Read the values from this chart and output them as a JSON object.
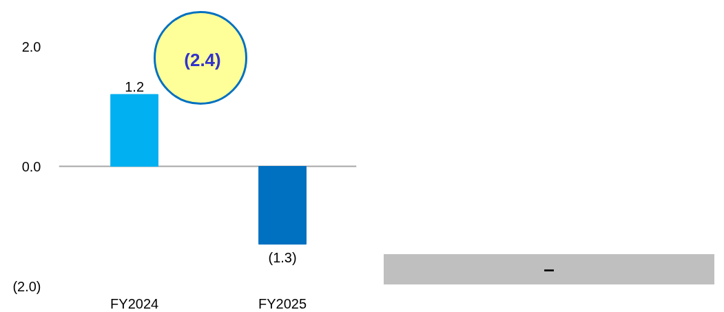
{
  "chart_data": {
    "type": "bar",
    "categories": [
      "FY2024",
      "FY2025"
    ],
    "values": [
      1.2,
      -1.3
    ],
    "colors": [
      "#00b0f0",
      "#0070c0"
    ],
    "value_labels": [
      "1.2",
      "(1.3)"
    ],
    "ylim": [
      -2.0,
      2.0
    ],
    "yticks": [
      {
        "value": -2.0,
        "label": "(2.0)"
      },
      {
        "value": 0.0,
        "label": "0.0"
      },
      {
        "value": 2.0,
        "label": "2.0"
      }
    ],
    "grid": "y",
    "annotations": [
      "(2.4)",
      "–"
    ]
  }
}
